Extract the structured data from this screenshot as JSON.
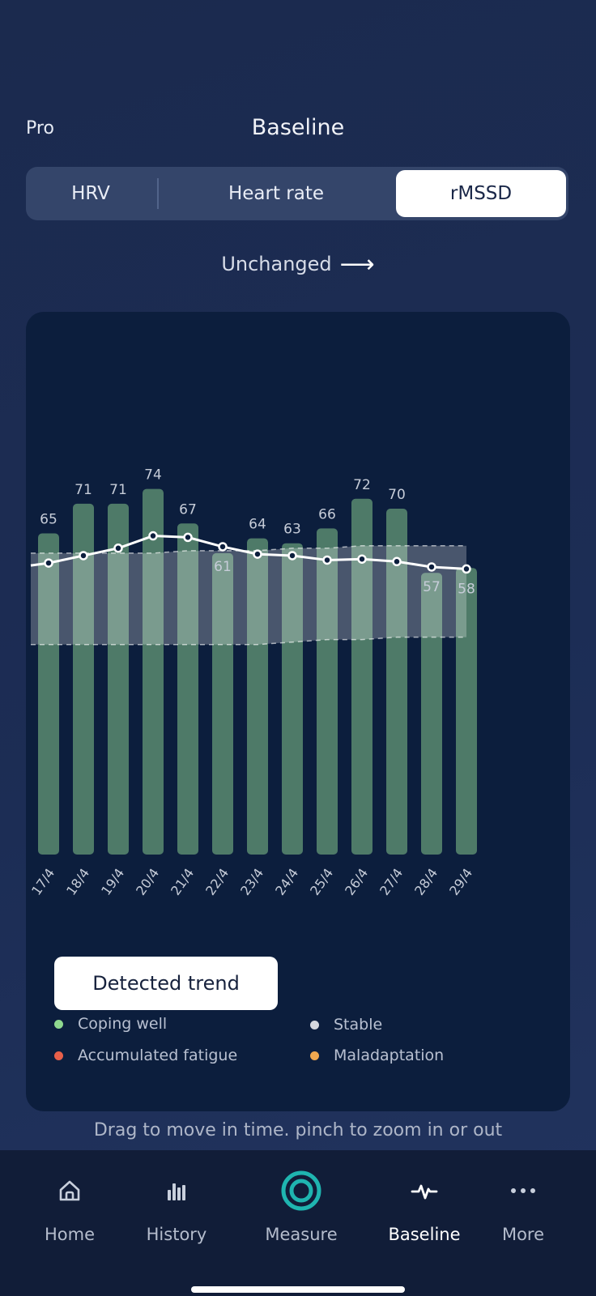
{
  "header": {
    "left_label": "Pro",
    "title": "Baseline"
  },
  "segments": [
    "HRV",
    "Heart rate",
    "rMSSD"
  ],
  "selected_segment": "rMSSD",
  "trend_status": "Unchanged",
  "detected_trend_button": "Detected trend",
  "legend": [
    {
      "label": "Coping well",
      "color": "#8fd88f"
    },
    {
      "label": "Stable",
      "color": "#d5d8de"
    },
    {
      "label": "Accumulated fatigue",
      "color": "#e8604a"
    },
    {
      "label": "Maladaptation",
      "color": "#f0a850"
    }
  ],
  "hint": "Drag to move in time. pinch to zoom in or out",
  "tabs": [
    {
      "label": "Home",
      "icon": "home-icon"
    },
    {
      "label": "History",
      "icon": "bar-chart-icon"
    },
    {
      "label": "Measure",
      "icon": "measure-ring-icon"
    },
    {
      "label": "Baseline",
      "icon": "pulse-icon"
    },
    {
      "label": "More",
      "icon": "more-dots-icon"
    }
  ],
  "active_tab": "Baseline",
  "colors": {
    "bar": "#4e7a68",
    "band": "#ffffff",
    "line": "#ffffff",
    "accent": "#1fb5b0"
  },
  "chart_data": {
    "type": "bar",
    "categories": [
      "17/4",
      "18/4",
      "19/4",
      "20/4",
      "21/4",
      "22/4",
      "23/4",
      "24/4",
      "25/4",
      "26/4",
      "27/4",
      "28/4",
      "29/4"
    ],
    "values": [
      65,
      71,
      71,
      74,
      67,
      61,
      64,
      63,
      66,
      72,
      70,
      57,
      58
    ],
    "value_labels": [
      "65",
      "71",
      "71",
      "74",
      "67",
      "61",
      "64",
      "63",
      "66",
      "72",
      "70",
      "57",
      "58"
    ],
    "baseline_line": [
      59,
      60.5,
      62,
      64.5,
      64.2,
      62.3,
      60.8,
      60.5,
      59.6,
      59.8,
      59.3,
      58.2,
      57.8
    ],
    "band_upper": [
      61,
      61,
      61,
      61,
      61.5,
      61.5,
      61.5,
      62,
      62,
      62.5,
      62.5,
      62.5,
      62.5
    ],
    "band_lower": [
      42.5,
      42.5,
      42.5,
      42.5,
      42.5,
      42.5,
      42.5,
      43,
      43.5,
      43.5,
      44,
      44,
      44
    ],
    "ylim": [
      0,
      80
    ]
  }
}
